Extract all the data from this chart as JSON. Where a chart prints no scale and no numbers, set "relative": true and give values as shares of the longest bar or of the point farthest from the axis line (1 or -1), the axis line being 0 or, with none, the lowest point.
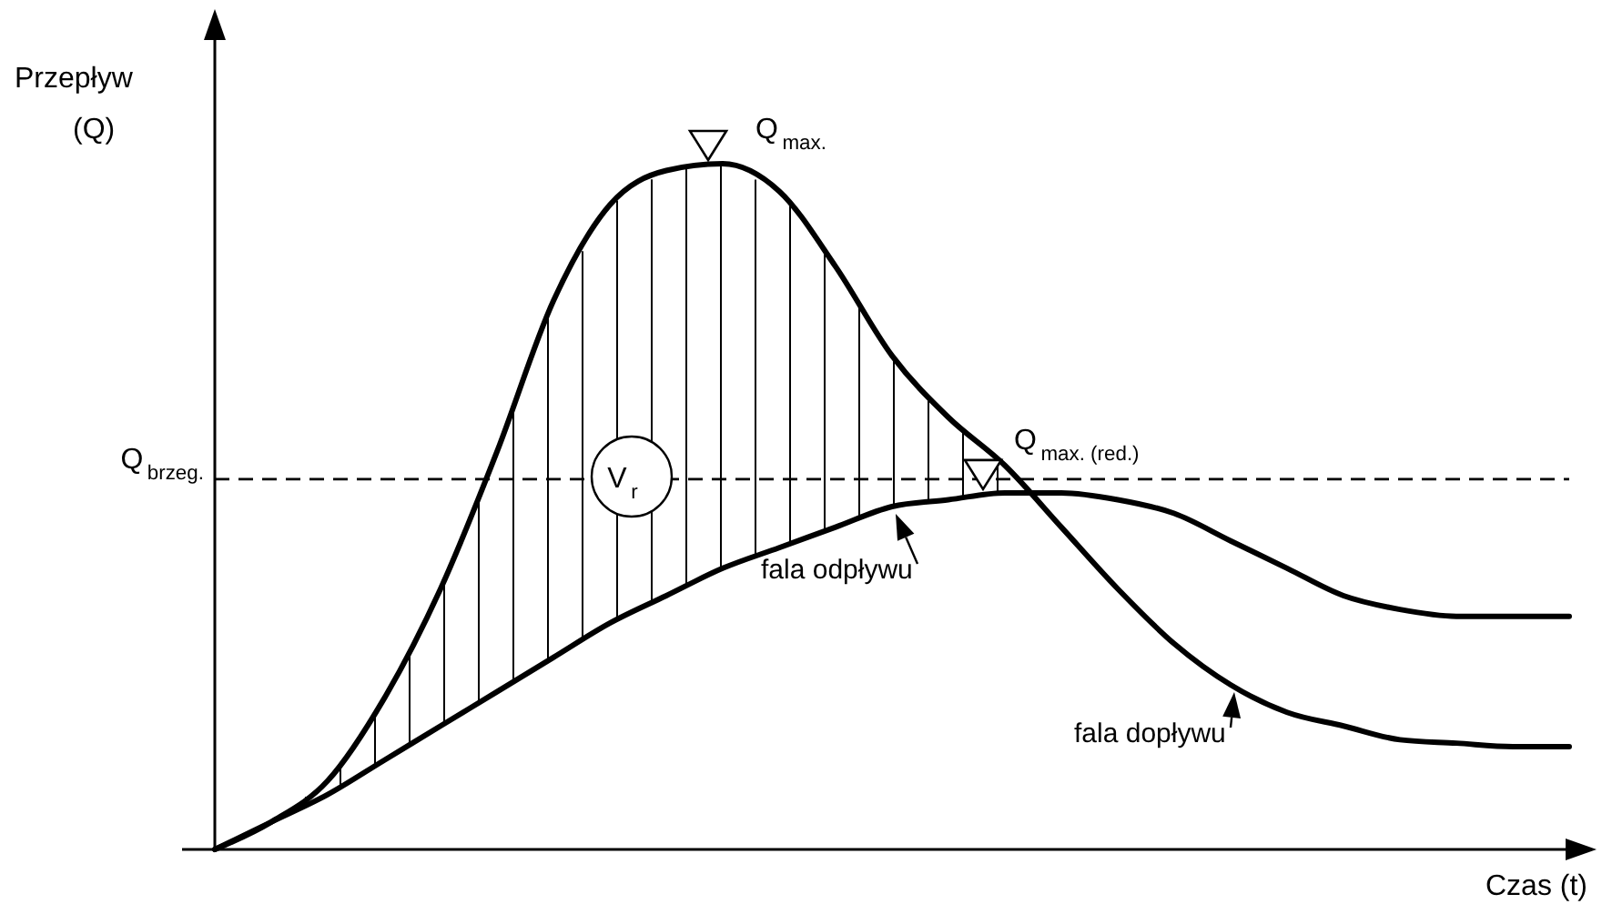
{
  "chart_data": {
    "type": "line",
    "relative": true,
    "xlabel": "Czas (t)",
    "ylabel": "Przepływ\n(Q)",
    "categories": [
      null,
      null,
      null,
      null,
      null,
      null,
      null,
      null,
      null,
      null,
      null,
      null,
      null,
      null,
      null,
      null,
      null,
      null,
      null,
      null,
      null,
      null,
      null,
      null,
      null
    ],
    "series": [
      {
        "name": "fala dopływu",
        "color": "#000000",
        "values": [
          0,
          0.04,
          0.1,
          0.22,
          0.38,
          0.58,
          0.8,
          0.94,
          0.99,
          1,
          0.96,
          0.85,
          0.72,
          0.63,
          0.56,
          0.47,
          0.38,
          0.3,
          0.24,
          0.2,
          0.18,
          0.16,
          0.155,
          0.15,
          0.15
        ]
      },
      {
        "name": "fala odpływu",
        "color": "#000000",
        "values": [
          0,
          0.04,
          0.08,
          0.13,
          0.18,
          0.23,
          0.28,
          0.33,
          0.37,
          0.41,
          0.44,
          0.47,
          0.5,
          0.51,
          0.52,
          0.52,
          0.51,
          0.49,
          0.45,
          0.41,
          0.37,
          0.35,
          0.34,
          0.34,
          0.34
        ]
      }
    ],
    "ref_lines": [
      {
        "axis": "y",
        "value": 0.54,
        "label": "Q$_{brzeg.}$",
        "line_style": "dashed",
        "color": "#000000"
      }
    ],
    "annotations": [
      "Q$_{max.}$",
      "V$_{r}$",
      "Q$_{max. (red.)}$"
    ],
    "legend": "bottom right",
    "marker": "none"
  }
}
